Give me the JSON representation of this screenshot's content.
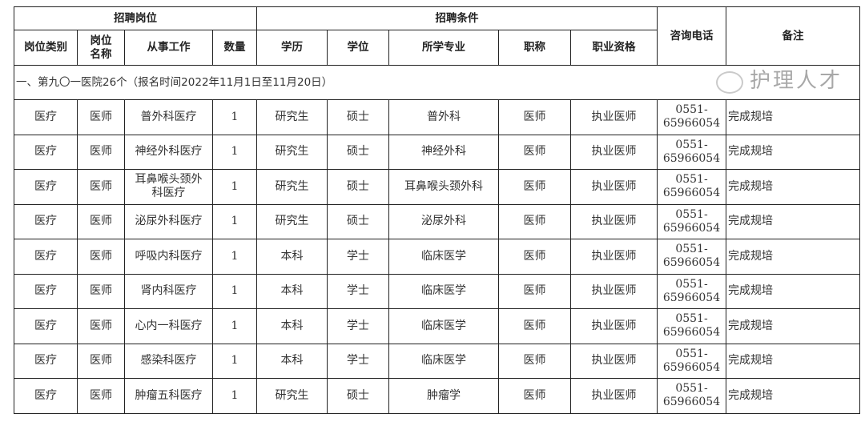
{
  "header": {
    "group_position": "招聘岗位",
    "group_conditions": "招聘条件",
    "phone": "咨询电话",
    "notes": "备注",
    "columns": [
      "岗位类别",
      "岗位\n名称",
      "从事工作",
      "数量",
      "学历",
      "学位",
      "所学专业",
      "职称",
      "职业资格"
    ]
  },
  "section_title": "一、第九〇一医院26个（报名时间2022年11月1日至11月20日）",
  "rows": [
    {
      "category": "医疗",
      "title": "医师",
      "work": "普外科医疗",
      "count": "1",
      "education": "研究生",
      "degree": "硕士",
      "major": "普外科",
      "rank": "医师",
      "qualification": "执业医师",
      "phone": "0551-\n65966054",
      "note": "完成规培"
    },
    {
      "category": "医疗",
      "title": "医师",
      "work": "神经外科医疗",
      "count": "1",
      "education": "研究生",
      "degree": "硕士",
      "major": "神经外科",
      "rank": "医师",
      "qualification": "执业医师",
      "phone": "0551-\n65966054",
      "note": "完成规培"
    },
    {
      "category": "医疗",
      "title": "医师",
      "work": "耳鼻喉头颈外科医疗",
      "count": "1",
      "education": "研究生",
      "degree": "硕士",
      "major": "耳鼻喉头颈外科",
      "rank": "医师",
      "qualification": "执业医师",
      "phone": "0551-\n65966054",
      "note": "完成规培"
    },
    {
      "category": "医疗",
      "title": "医师",
      "work": "泌尿外科医疗",
      "count": "1",
      "education": "研究生",
      "degree": "硕士",
      "major": "泌尿外科",
      "rank": "医师",
      "qualification": "执业医师",
      "phone": "0551-\n65966054",
      "note": "完成规培"
    },
    {
      "category": "医疗",
      "title": "医师",
      "work": "呼吸内科医疗",
      "count": "1",
      "education": "本科",
      "degree": "学士",
      "major": "临床医学",
      "rank": "医师",
      "qualification": "执业医师",
      "phone": "0551-\n65966054",
      "note": "完成规培"
    },
    {
      "category": "医疗",
      "title": "医师",
      "work": "肾内科医疗",
      "count": "1",
      "education": "本科",
      "degree": "学士",
      "major": "临床医学",
      "rank": "医师",
      "qualification": "执业医师",
      "phone": "0551-\n65966054",
      "note": "完成规培"
    },
    {
      "category": "医疗",
      "title": "医师",
      "work": "心内一科医疗",
      "count": "1",
      "education": "本科",
      "degree": "学士",
      "major": "临床医学",
      "rank": "医师",
      "qualification": "执业医师",
      "phone": "0551-\n65966054",
      "note": "完成规培"
    },
    {
      "category": "医疗",
      "title": "医师",
      "work": "感染科医疗",
      "count": "1",
      "education": "本科",
      "degree": "学士",
      "major": "临床医学",
      "rank": "医师",
      "qualification": "执业医师",
      "phone": "0551-\n65966054",
      "note": "完成规培"
    },
    {
      "category": "医疗",
      "title": "医师",
      "work": "肿瘤五科医疗",
      "count": "1",
      "education": "研究生",
      "degree": "硕士",
      "major": "肿瘤学",
      "rank": "医师",
      "qualification": "执业医师",
      "phone": "0551-\n65966054",
      "note": "完成规培"
    }
  ],
  "watermark": "护理人才"
}
